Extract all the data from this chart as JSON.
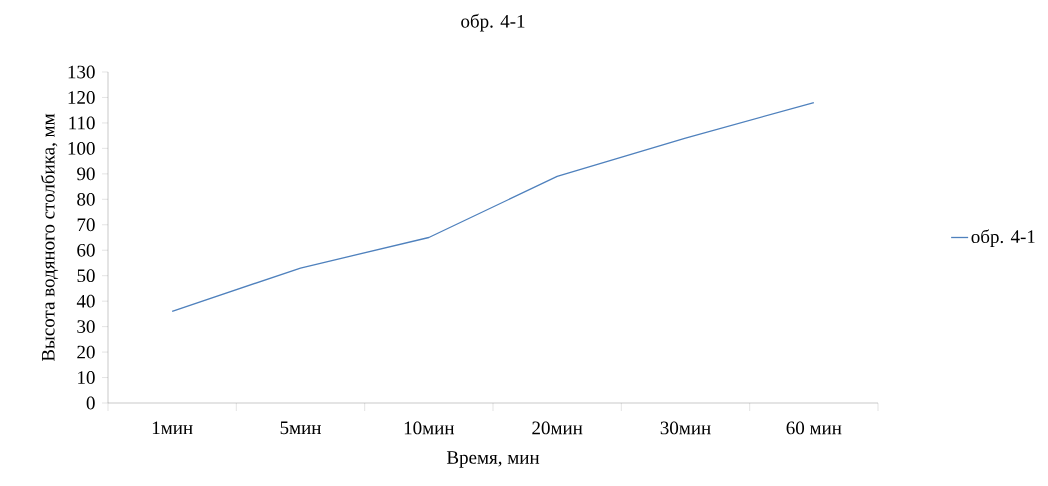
{
  "chart_data": {
    "type": "line",
    "title": "обр. 4-1",
    "xlabel": "Время, мин",
    "ylabel": "Высота водяного столбика, мм",
    "categories": [
      "1мин",
      "5мин",
      "10мин",
      "20мин",
      "30мин",
      "60 мин"
    ],
    "series": [
      {
        "name": "обр. 4-1",
        "color": "#4f81bd",
        "values": [
          36,
          53,
          65,
          89,
          104,
          118
        ]
      }
    ],
    "ylim": [
      0,
      130
    ],
    "yticks": [
      0,
      10,
      20,
      30,
      40,
      50,
      60,
      70,
      80,
      90,
      100,
      110,
      120,
      130
    ],
    "legend": "right",
    "grid": false,
    "marker": "none",
    "line_style": "solid"
  }
}
